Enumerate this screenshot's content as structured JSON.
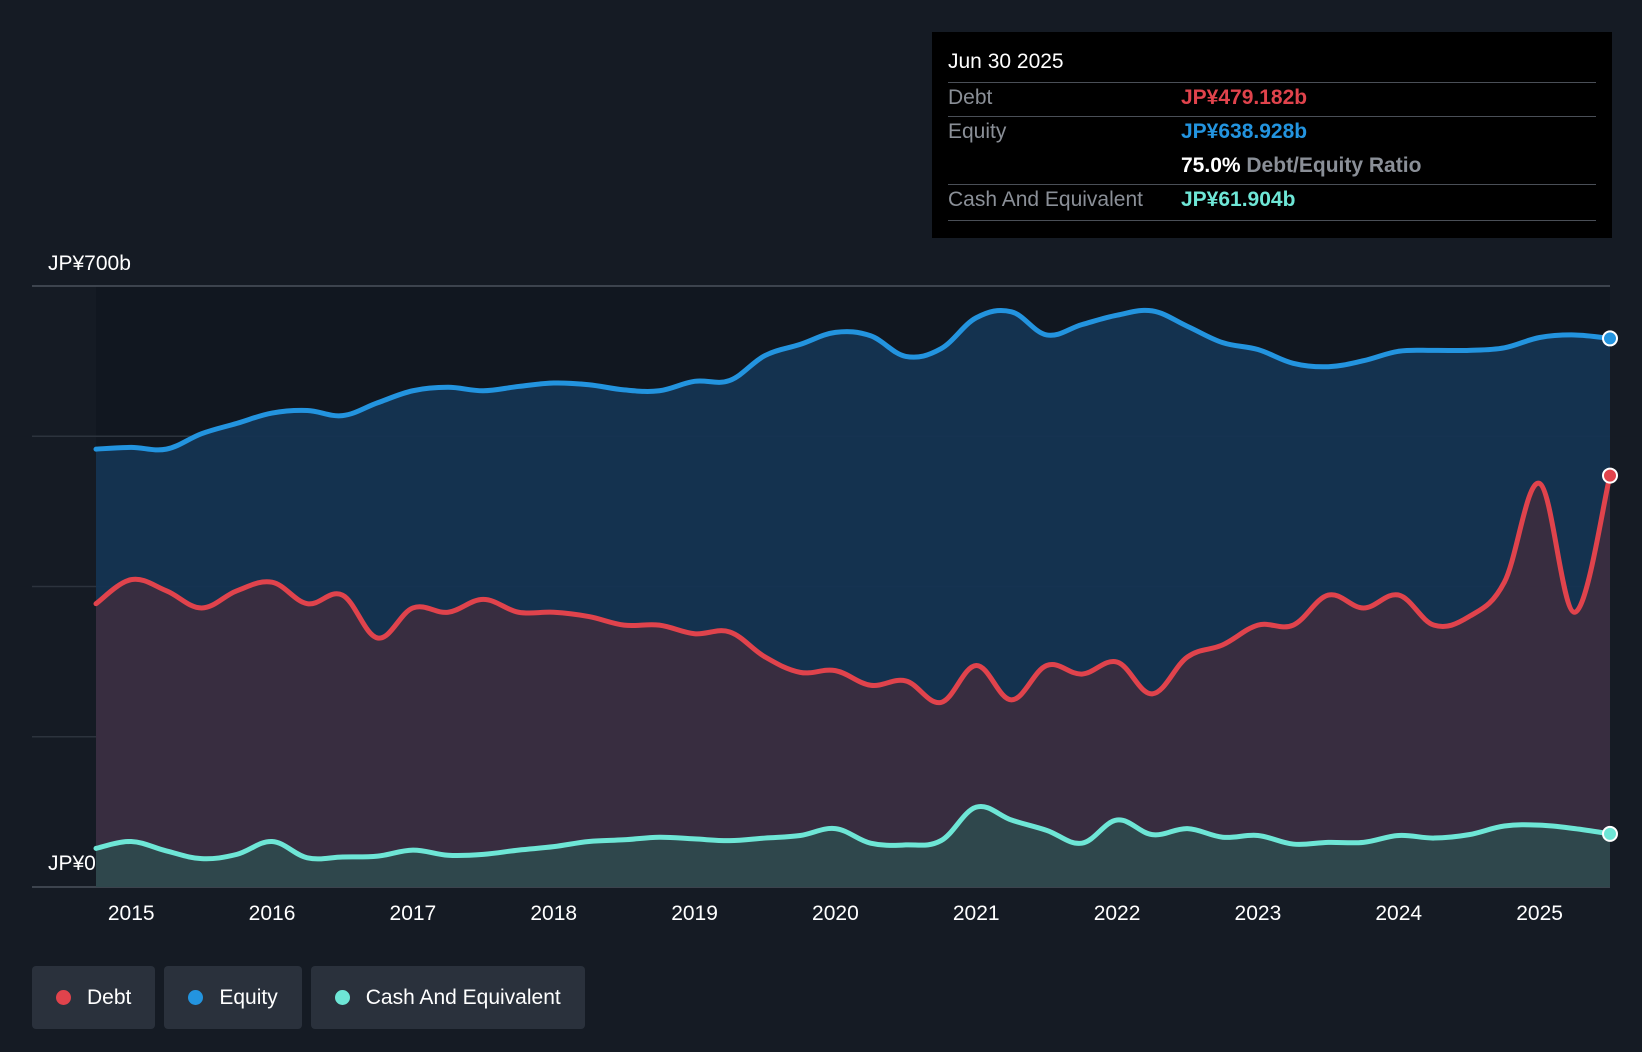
{
  "tooltip": {
    "date": "Jun 30 2025",
    "debt_label": "Debt",
    "debt_value": "JP¥479.182b",
    "equity_label": "Equity",
    "equity_value": "JP¥638.928b",
    "ratio_value": "75.0%",
    "ratio_label": "Debt/Equity Ratio",
    "cash_label": "Cash And Equivalent",
    "cash_value": "JP¥61.904b"
  },
  "legend": {
    "debt": "Debt",
    "equity": "Equity",
    "cash": "Cash And Equivalent"
  },
  "colors": {
    "debt": "#e0434c",
    "equity": "#2394df",
    "cash": "#6ee6d6",
    "background": "#151b24"
  },
  "chart_data": {
    "type": "area",
    "title": "",
    "xlabel": "",
    "ylabel": "",
    "y_top_label": "JP¥700b",
    "y_bottom_label": "JP¥0",
    "ylim": [
      0,
      700
    ],
    "xlim": [
      2014.75,
      2025.5
    ],
    "x_ticks": [
      2015,
      2016,
      2017,
      2018,
      2019,
      2020,
      2021,
      2022,
      2023,
      2024,
      2025
    ],
    "x_tick_labels": [
      "2015",
      "2016",
      "2017",
      "2018",
      "2019",
      "2020",
      "2021",
      "2022",
      "2023",
      "2024",
      "2025"
    ],
    "series": [
      {
        "name": "Equity",
        "key": "equity",
        "x": [
          2014.75,
          2015.0,
          2015.25,
          2015.5,
          2015.75,
          2016.0,
          2016.25,
          2016.5,
          2016.75,
          2017.0,
          2017.25,
          2017.5,
          2017.75,
          2018.0,
          2018.25,
          2018.5,
          2018.75,
          2019.0,
          2019.25,
          2019.5,
          2019.75,
          2020.0,
          2020.25,
          2020.5,
          2020.75,
          2021.0,
          2021.25,
          2021.5,
          2021.75,
          2022.0,
          2022.25,
          2022.5,
          2022.75,
          2023.0,
          2023.25,
          2023.5,
          2023.75,
          2024.0,
          2024.25,
          2024.5,
          2024.75,
          2025.0,
          2025.25,
          2025.5
        ],
        "values": [
          510,
          512,
          510,
          528,
          540,
          552,
          555,
          549,
          564,
          578,
          582,
          578,
          583,
          587,
          585,
          579,
          578,
          589,
          590,
          619,
          632,
          646,
          642,
          618,
          627,
          663,
          670,
          643,
          655,
          666,
          671,
          653,
          634,
          626,
          610,
          606,
          613,
          624,
          625,
          625,
          628,
          640,
          643,
          638.928
        ]
      },
      {
        "name": "Debt",
        "key": "debt",
        "x": [
          2014.75,
          2015.0,
          2015.25,
          2015.5,
          2015.75,
          2016.0,
          2016.25,
          2016.5,
          2016.75,
          2017.0,
          2017.25,
          2017.5,
          2017.75,
          2018.0,
          2018.25,
          2018.5,
          2018.75,
          2019.0,
          2019.25,
          2019.5,
          2019.75,
          2020.0,
          2020.25,
          2020.5,
          2020.75,
          2021.0,
          2021.25,
          2021.5,
          2021.75,
          2022.0,
          2022.25,
          2022.5,
          2022.75,
          2023.0,
          2023.25,
          2023.5,
          2023.75,
          2024.0,
          2024.25,
          2024.5,
          2024.75,
          2025.0,
          2025.25,
          2025.5
        ],
        "values": [
          330,
          358,
          345,
          325,
          345,
          355,
          330,
          340,
          290,
          325,
          320,
          335,
          320,
          320,
          315,
          305,
          305,
          295,
          297,
          268,
          250,
          252,
          235,
          240,
          215,
          258,
          218,
          258,
          248,
          262,
          225,
          268,
          282,
          305,
          305,
          340,
          325,
          340,
          305,
          315,
          355,
          470,
          320,
          479.182
        ]
      },
      {
        "name": "Cash And Equivalent",
        "key": "cash",
        "x": [
          2014.75,
          2015.0,
          2015.25,
          2015.5,
          2015.75,
          2016.0,
          2016.25,
          2016.5,
          2016.75,
          2017.0,
          2017.25,
          2017.5,
          2017.75,
          2018.0,
          2018.25,
          2018.5,
          2018.75,
          2019.0,
          2019.25,
          2019.5,
          2019.75,
          2020.0,
          2020.25,
          2020.5,
          2020.75,
          2021.0,
          2021.25,
          2021.5,
          2021.75,
          2022.0,
          2022.25,
          2022.5,
          2022.75,
          2023.0,
          2023.25,
          2023.5,
          2023.75,
          2024.0,
          2024.25,
          2024.5,
          2024.75,
          2025.0,
          2025.25,
          2025.5
        ],
        "values": [
          45,
          53,
          42,
          33,
          38,
          53,
          34,
          35,
          36,
          43,
          37,
          38,
          43,
          47,
          53,
          55,
          58,
          56,
          54,
          57,
          60,
          68,
          51,
          49,
          54,
          93,
          78,
          66,
          51,
          78,
          61,
          68,
          58,
          60,
          50,
          52,
          52,
          60,
          57,
          61,
          71,
          72,
          68,
          61.904
        ]
      }
    ]
  }
}
